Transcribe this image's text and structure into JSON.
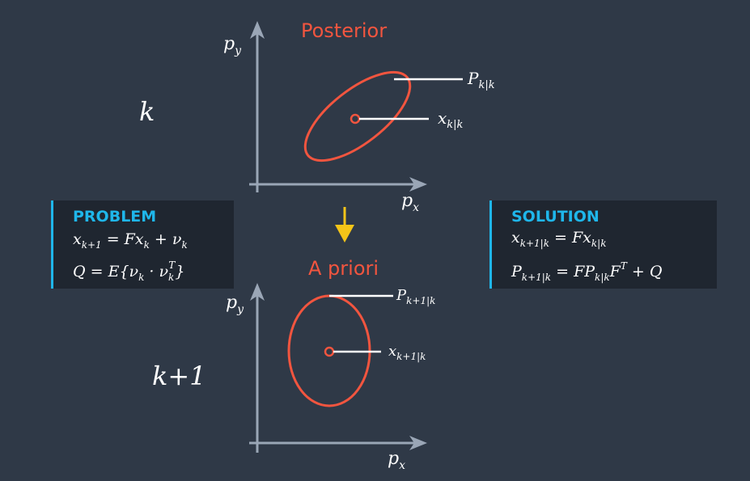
{
  "colors": {
    "background": "#2f3947",
    "axis": "#9aa6b6",
    "ellipse": "#f2553f",
    "arrow": "#f5c518",
    "panel_bg": "#1f2630",
    "panel_accent": "#1fb6ea",
    "text": "#ffffff"
  },
  "step_labels": {
    "k": "k",
    "k_plus_1": "k+1"
  },
  "top_plot": {
    "title": "Posterior",
    "y_axis": {
      "main": "p",
      "sub": "y"
    },
    "x_axis": {
      "main": "p",
      "sub": "x"
    },
    "covariance_label": {
      "main": "P",
      "sub": "k|k"
    },
    "state_label": {
      "main": "x",
      "sub": "k|k"
    }
  },
  "bottom_plot": {
    "title": "A priori",
    "y_axis": {
      "main": "p",
      "sub": "y"
    },
    "x_axis": {
      "main": "p",
      "sub": "x"
    },
    "covariance_label": {
      "main": "P",
      "sub": "k+1|k"
    },
    "state_label": {
      "main": "x",
      "sub": "k+1|k"
    }
  },
  "transition_arrow": "down-arrow-icon",
  "problem_panel": {
    "title": "PROBLEM",
    "eq1": {
      "lhs": "x",
      "lhs_sub": "k+1",
      "rhs": " = Fx",
      "rhs_sub": "k",
      "tail": " + ν",
      "tail_sub": "k"
    },
    "eq2": {
      "text": "Q = E{ν",
      "sub1": "k",
      "mid": " · ν",
      "sub2": "k",
      "sup2": "T",
      "tail": "}"
    }
  },
  "solution_panel": {
    "title": "SOLUTION",
    "eq1": {
      "lhs": "x",
      "lhs_sub": "k+1|k",
      "rhs": " = Fx",
      "rhs_sub": "k|k"
    },
    "eq2": {
      "lhs": "P",
      "lhs_sub": "k+1|k",
      "rhs": " = FP",
      "rhs_sub": "k|k",
      "tail": "F",
      "tail_sup": "T",
      "end": " + Q"
    }
  }
}
